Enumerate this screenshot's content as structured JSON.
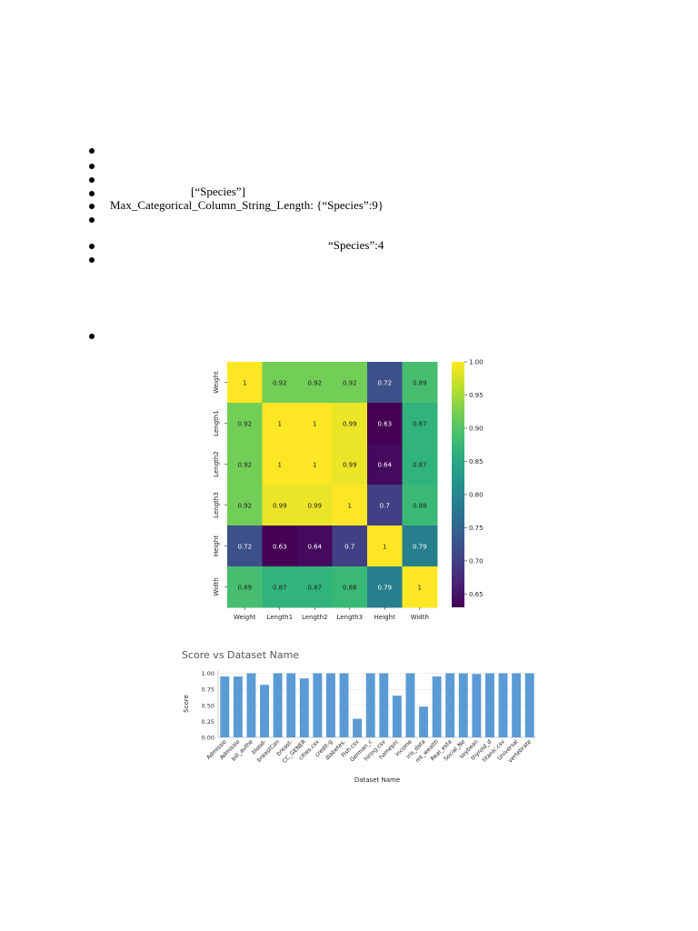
{
  "document": {
    "bullets": [
      "",
      "",
      "",
      "[“Species”]",
      "Max_Categorical_Column_String_Length: {“Species”:9}",
      "",
      "“Species”:4",
      "",
      ""
    ]
  },
  "chart_data": [
    {
      "type": "heatmap",
      "title": "",
      "xlabel": "",
      "ylabel": "",
      "row_labels": [
        "Weight",
        "Length1",
        "Length2",
        "Length3",
        "Height",
        "Width"
      ],
      "col_labels": [
        "Weight",
        "Length1",
        "Length2",
        "Length3",
        "Height",
        "Width"
      ],
      "values": [
        [
          1,
          0.92,
          0.92,
          0.92,
          0.72,
          0.89
        ],
        [
          0.92,
          1,
          1,
          0.99,
          0.63,
          0.87
        ],
        [
          0.92,
          1,
          1,
          0.99,
          0.64,
          0.87
        ],
        [
          0.92,
          0.99,
          0.99,
          1,
          0.7,
          0.88
        ],
        [
          0.72,
          0.63,
          0.64,
          0.7,
          1,
          0.79
        ],
        [
          0.89,
          0.87,
          0.87,
          0.88,
          0.79,
          1
        ]
      ],
      "colorbar": {
        "colormap": "viridis",
        "vmin": 0.63,
        "vmax": 1.0,
        "ticks": [
          "1.00",
          "0.95",
          "0.90",
          "0.85",
          "0.80",
          "0.75",
          "0.70",
          "0.65"
        ]
      }
    },
    {
      "type": "bar",
      "title": "Score vs Dataset Name",
      "xlabel": "Dataset Name",
      "ylabel": "Score",
      "ylim": [
        0,
        1.05
      ],
      "yticks": [
        "0.00",
        "0.25",
        "0.50",
        "0.75",
        "1.00"
      ],
      "color": "#5b9bd5",
      "categories": [
        "Admissio",
        "Admissio",
        "bill_authe",
        "blood-",
        "breastCan",
        "breast-",
        "CC_GENER",
        "cities.csv",
        "credit-g",
        "diabetes.",
        "Fish.csv",
        "German_c",
        "hiring.csv",
        "homeprc",
        "income",
        "iris_data",
        "mt_wealth",
        "Real_esta",
        "Social_Ne",
        "soybean",
        "thyroid_d",
        "titanic.csv",
        "Universal",
        "vertebrate"
      ],
      "values": [
        0.95,
        0.95,
        1.0,
        0.82,
        1.0,
        1.0,
        0.92,
        1.0,
        1.0,
        1.0,
        0.29,
        1.0,
        1.0,
        0.65,
        1.0,
        0.48,
        0.95,
        1.0,
        1.0,
        0.99,
        1.0,
        1.0,
        1.0,
        1.0
      ]
    }
  ]
}
